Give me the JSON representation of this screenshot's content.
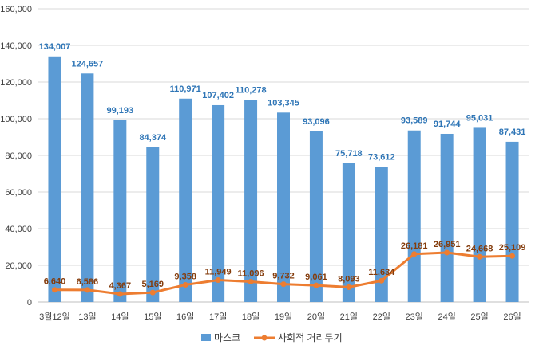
{
  "chart_data": {
    "type": "bar",
    "categories": [
      "3월12일",
      "13일",
      "14일",
      "15일",
      "16일",
      "17일",
      "18일",
      "19일",
      "20일",
      "21일",
      "22일",
      "23일",
      "24일",
      "25일",
      "26일"
    ],
    "ylim": [
      0,
      160000
    ],
    "yticks": [
      0,
      20000,
      40000,
      60000,
      80000,
      100000,
      120000,
      140000,
      160000
    ],
    "ytick_labels": [
      "0",
      "20,000",
      "40,000",
      "60,000",
      "80,000",
      "100,000",
      "120,000",
      "140,000",
      "160,000"
    ],
    "grid": true,
    "legend_position": "bottom",
    "series": [
      {
        "name": "마스크",
        "type": "bar",
        "color": "#5b9bd5",
        "values": [
          134007,
          124657,
          99193,
          84374,
          110971,
          107402,
          110278,
          103345,
          93096,
          75718,
          73612,
          93589,
          91744,
          95031,
          87431
        ],
        "labels": [
          "134,007",
          "124,657",
          "99,193",
          "84,374",
          "110,971",
          "107,402",
          "110,278",
          "103,345",
          "93,096",
          "75,718",
          "73,612",
          "93,589",
          "91,744",
          "95,031",
          "87,431"
        ]
      },
      {
        "name": "사회적 거리두기",
        "type": "line",
        "color": "#ed7d31",
        "values": [
          6640,
          6586,
          4367,
          5169,
          9358,
          11949,
          11096,
          9732,
          9061,
          8093,
          11634,
          26181,
          26951,
          24668,
          25109
        ],
        "labels": [
          "6,640",
          "6,586",
          "4,367",
          "5,169",
          "9,358",
          "11,949",
          "11,096",
          "9,732",
          "9,061",
          "8,093",
          "11,634",
          "26,181",
          "26,951",
          "24,668",
          "25,109"
        ]
      }
    ]
  }
}
